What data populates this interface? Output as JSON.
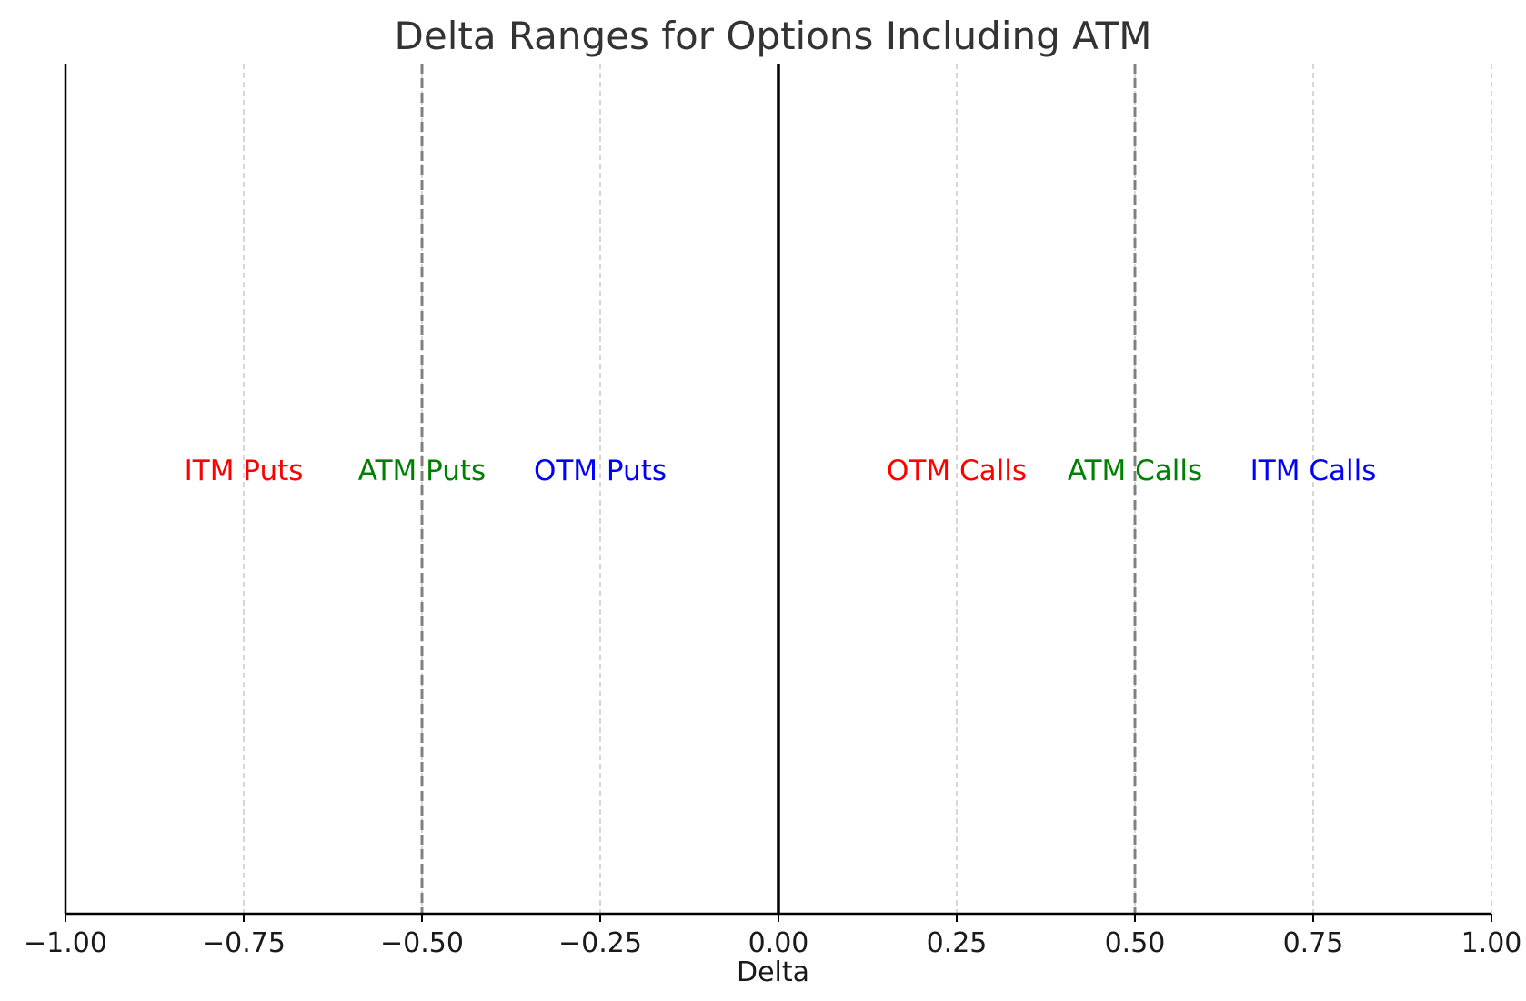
{
  "chart_data": {
    "type": "scatter",
    "title": "Delta Ranges for Options Including ATM",
    "xlabel": "Delta",
    "ylabel": "",
    "xlim": [
      -1.0,
      1.0
    ],
    "grid": "x-only, dashed",
    "xticks": [
      {
        "value": -1.0,
        "label": "−1.00"
      },
      {
        "value": -0.75,
        "label": "−0.75"
      },
      {
        "value": -0.5,
        "label": "−0.50"
      },
      {
        "value": -0.25,
        "label": "−0.25"
      },
      {
        "value": 0.0,
        "label": "0.00"
      },
      {
        "value": 0.25,
        "label": "0.25"
      },
      {
        "value": 0.5,
        "label": "0.50"
      },
      {
        "value": 0.75,
        "label": "0.75"
      },
      {
        "value": 1.0,
        "label": "1.00"
      }
    ],
    "reference_lines": [
      {
        "x": 0.0,
        "style": "solid",
        "color": "#000000"
      },
      {
        "x": -0.5,
        "style": "dashed",
        "color": "#808080"
      },
      {
        "x": 0.5,
        "style": "dashed",
        "color": "#808080"
      }
    ],
    "annotations": [
      {
        "text": "ITM Puts",
        "x": -0.75,
        "color": "#ff0000"
      },
      {
        "text": "ATM Puts",
        "x": -0.5,
        "color": "#008000"
      },
      {
        "text": "OTM Puts",
        "x": -0.25,
        "color": "#0000ff"
      },
      {
        "text": "OTM Calls",
        "x": 0.25,
        "color": "#ff0000"
      },
      {
        "text": "ATM Calls",
        "x": 0.5,
        "color": "#008000"
      },
      {
        "text": "ITM Calls",
        "x": 0.75,
        "color": "#0000ff"
      }
    ]
  }
}
